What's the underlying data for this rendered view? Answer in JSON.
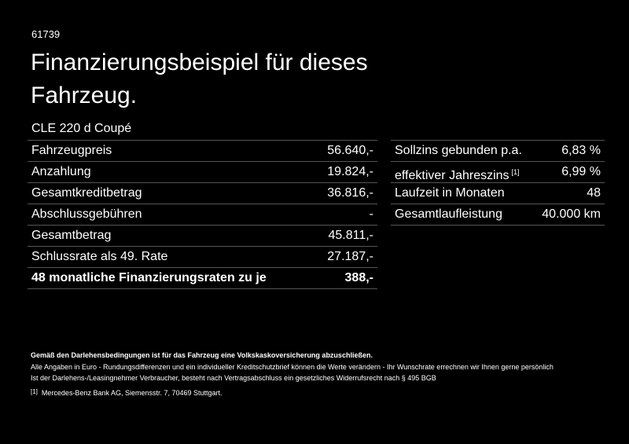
{
  "header": {
    "id": "61739",
    "title_line1": "Finanzierungsbeispiel für dieses",
    "title_line2": "Fahrzeug.",
    "model": "CLE 220 d Coupé"
  },
  "left_table": {
    "rows": [
      [
        "Fahrzeugpreis",
        "56.640,-"
      ],
      [
        "Anzahlung",
        "19.824,-"
      ],
      [
        "Gesamtkreditbetrag",
        "36.816,-"
      ],
      [
        "Abschlussgebühren",
        "-"
      ],
      [
        "Gesamtbetrag",
        "45.811,-"
      ],
      [
        "Schlussrate als 49. Rate",
        "27.187,-"
      ],
      [
        "48 monatliche Finanzierungsraten zu je",
        "388,-"
      ]
    ]
  },
  "right_table": {
    "rows": [
      [
        "Sollzins gebunden p.a.",
        "6,83 %"
      ],
      [
        "effektiver Jahreszins",
        "6,99 %"
      ],
      [
        "Laufzeit in Monaten",
        "48"
      ],
      [
        "Gesamtlaufleistung",
        "40.000 km"
      ]
    ],
    "footnote_ref": "[1]"
  },
  "footer": {
    "notice": "Gemäß den Darlehensbedingungen ist für das Fahrzeug eine Volkskaskoversicherung abzuschließen.",
    "line1": "Alle Angaben in Euro - Rundungsdifferenzen und ein individueller Kreditschutzbrief können die Werte verändern - Ihr Wunschrate errechnen wir Ihnen gerne persönlich",
    "line2": "Ist der Darlehens-/Leasingnehmer Verbraucher, besteht nach Vertragsabschluss ein gesetzliches Widerrufsrecht nach § 495 BGB",
    "footnote_marker": "[1]",
    "footnote_text": "Mercedes-Benz Bank AG, Siemensstr. 7, 70469 Stuttgart."
  }
}
